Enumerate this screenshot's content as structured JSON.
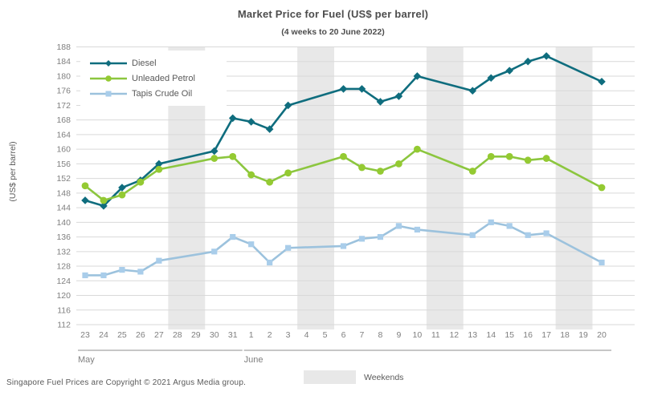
{
  "title": "Market Price for Fuel (US$ per barrel)",
  "subtitle": "(4 weeks to 20 June 2022)",
  "footer": "Singapore Fuel Prices are Copyright © 2021 Argus Media group.",
  "weekend_legend_label": "Weekends",
  "colors": {
    "grid": "#d9d9d9",
    "weekend_band": "#e8e8e8",
    "tick_text": "#7f7f7f",
    "month_line": "#8c8c8c",
    "title_text": "#4d4d4d"
  },
  "chart_data": {
    "type": "line",
    "title": "Market Price for Fuel (US$ per barrel)",
    "subtitle": "(4 weeks to 20 June 2022)",
    "xlabel": "",
    "ylabel": "(US$ per barrel)",
    "ylim": [
      112,
      188
    ],
    "ytick_step": 4,
    "grid": true,
    "legend_position": "top-left",
    "categories": [
      "23",
      "24",
      "25",
      "26",
      "27",
      "28",
      "29",
      "30",
      "31",
      "1",
      "2",
      "3",
      "4",
      "5",
      "6",
      "7",
      "8",
      "9",
      "10",
      "11",
      "12",
      "13",
      "14",
      "15",
      "16",
      "17",
      "18",
      "19",
      "20"
    ],
    "month_groups": [
      {
        "label": "May",
        "start": 0,
        "end": 8
      },
      {
        "label": "June",
        "start": 9,
        "end": 28
      }
    ],
    "weekend_bands": [
      [
        5,
        6
      ],
      [
        12,
        13
      ],
      [
        19,
        20
      ],
      [
        26,
        27
      ]
    ],
    "series": [
      {
        "name": "Diesel",
        "marker": "diamond",
        "color": "#0f6d7e",
        "marker_color": "#0f6d7e",
        "values": [
          146,
          144.5,
          149.5,
          151.5,
          156,
          null,
          null,
          159.5,
          168.5,
          167.5,
          165.5,
          172,
          null,
          null,
          176.5,
          176.5,
          173,
          174.5,
          180,
          null,
          null,
          176,
          179.5,
          181.5,
          184,
          185.5,
          null,
          null,
          178.5
        ]
      },
      {
        "name": "Unleaded Petrol",
        "marker": "circle",
        "color": "#8cc63f",
        "marker_color": "#94ca32",
        "values": [
          150,
          146,
          147.5,
          151,
          154.5,
          null,
          null,
          157.5,
          158,
          153,
          151,
          153.5,
          null,
          null,
          158,
          155,
          154,
          156,
          160,
          null,
          null,
          154,
          158,
          158,
          157,
          157.5,
          null,
          null,
          149.5
        ]
      },
      {
        "name": "Tapis Crude Oil",
        "marker": "square",
        "color": "#9cc2dd",
        "marker_color": "#a9cdea",
        "values": [
          125.5,
          125.5,
          127,
          126.5,
          129.5,
          null,
          null,
          132,
          136,
          134,
          129,
          133,
          null,
          null,
          133.5,
          135.5,
          136,
          139,
          138,
          null,
          null,
          136.5,
          140,
          139,
          136.5,
          137,
          null,
          null,
          129
        ]
      }
    ]
  }
}
